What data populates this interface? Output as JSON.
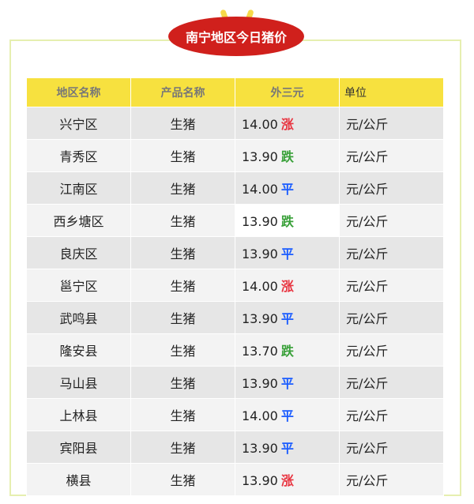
{
  "title": "南宁地区今日猪价",
  "headers": [
    "地区名称",
    "产品名称",
    "外三元",
    "单位"
  ],
  "colors": {
    "up": "#e8333f",
    "down": "#3aa13a",
    "flat": "#1a5cff",
    "header": "#f7e13f",
    "badge": "#d0201c"
  },
  "rows": [
    {
      "region": "兴宁区",
      "product": "生猪",
      "price": "14.00",
      "trend": "涨",
      "unit": "元/公斤"
    },
    {
      "region": "青秀区",
      "product": "生猪",
      "price": "13.90",
      "trend": "跌",
      "unit": "元/公斤"
    },
    {
      "region": "江南区",
      "product": "生猪",
      "price": "14.00",
      "trend": "平",
      "unit": "元/公斤"
    },
    {
      "region": "西乡塘区",
      "product": "生猪",
      "price": "13.90",
      "trend": "跌",
      "unit": "元/公斤"
    },
    {
      "region": "良庆区",
      "product": "生猪",
      "price": "13.90",
      "trend": "平",
      "unit": "元/公斤"
    },
    {
      "region": "邕宁区",
      "product": "生猪",
      "price": "14.00",
      "trend": "涨",
      "unit": "元/公斤"
    },
    {
      "region": "武鸣县",
      "product": "生猪",
      "price": "13.90",
      "trend": "平",
      "unit": "元/公斤"
    },
    {
      "region": "隆安县",
      "product": "生猪",
      "price": "13.70",
      "trend": "跌",
      "unit": "元/公斤"
    },
    {
      "region": "马山县",
      "product": "生猪",
      "price": "13.90",
      "trend": "平",
      "unit": "元/公斤"
    },
    {
      "region": "上林县",
      "product": "生猪",
      "price": "14.00",
      "trend": "平",
      "unit": "元/公斤"
    },
    {
      "region": "宾阳县",
      "product": "生猪",
      "price": "13.90",
      "trend": "平",
      "unit": "元/公斤"
    },
    {
      "region": "横县",
      "product": "生猪",
      "price": "13.90",
      "trend": "涨",
      "unit": "元/公斤"
    }
  ]
}
